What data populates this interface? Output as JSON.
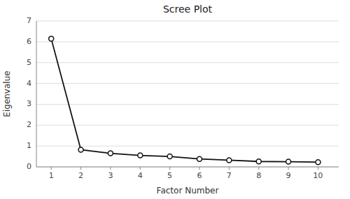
{
  "chart_data": {
    "type": "line",
    "title": "Scree Plot",
    "xlabel": "Factor Number",
    "ylabel": "Eigenvalue",
    "x": [
      1,
      2,
      3,
      4,
      5,
      6,
      7,
      8,
      9,
      10
    ],
    "values": [
      6.15,
      0.82,
      0.65,
      0.55,
      0.5,
      0.38,
      0.32,
      0.26,
      0.25,
      0.23
    ],
    "color": "#111111",
    "marker": "circle",
    "xlim": [
      0.5,
      10.7
    ],
    "ylim": [
      0,
      7
    ],
    "xticks": [
      1,
      2,
      3,
      4,
      5,
      6,
      7,
      8,
      9,
      10
    ],
    "yticks": [
      0,
      1,
      2,
      3,
      4,
      5,
      6,
      7
    ],
    "grid": true
  }
}
